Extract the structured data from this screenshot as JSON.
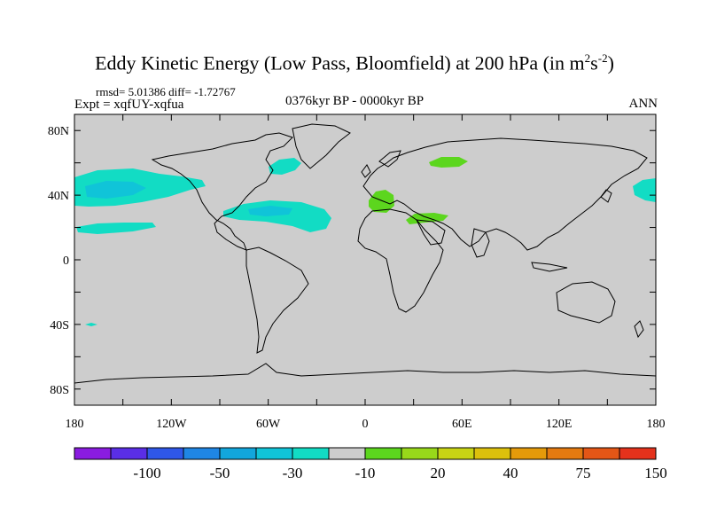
{
  "header": {
    "title_main": "Eddy Kinetic Energy (Low Pass, Bloomfield) at 200 hPa (in m",
    "title_sup1": "2",
    "title_mid": "s",
    "title_sup2": "-2",
    "title_end": ")",
    "stats": "rmsd= 5.01386 diff= -1.72767",
    "expt": "Expt = xqfUY-xqfua",
    "period": "0376kyr BP - 0000kyr BP",
    "season": "ANN"
  },
  "axes": {
    "lat_labels": [
      "80N",
      "40N",
      "0",
      "40S",
      "80S"
    ],
    "lon_labels": [
      "180",
      "120W",
      "60W",
      "0",
      "60E",
      "120E",
      "180"
    ]
  },
  "colorbar": {
    "colors": [
      "#8a1ce0",
      "#5a2ee6",
      "#2f57e8",
      "#1f86e4",
      "#12a6dc",
      "#10c4d8",
      "#12dcc4",
      "#cdcdcd",
      "#5cd61e",
      "#98d81a",
      "#c8d414",
      "#dcc00c",
      "#e49a0a",
      "#e47a10",
      "#e45616",
      "#e4321c"
    ],
    "labels": [
      "-100",
      "-50",
      "-30",
      "-10",
      "20",
      "40",
      "75",
      "150"
    ]
  },
  "anomaly_colors": {
    "light_cyan": "#12dcc4",
    "cyan": "#10c4d8",
    "green": "#5cd61e"
  }
}
